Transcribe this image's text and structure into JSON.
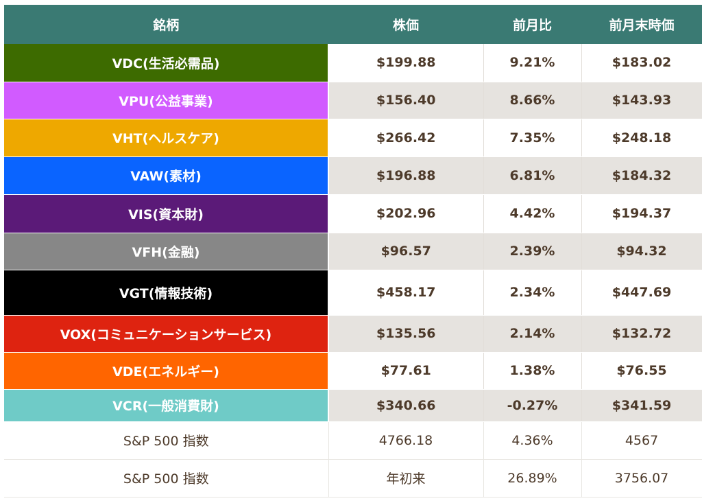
{
  "table": {
    "headers": [
      "銘柄",
      "株価",
      "前月比",
      "前月末時価"
    ],
    "rows": [
      {
        "name": "VDC(生活必需品)",
        "color": "#3d6b00",
        "price": "$199.88",
        "change": "9.21%",
        "prev": "$183.02"
      },
      {
        "name": "VPU(公益事業)",
        "color": "#d15bff",
        "price": "$156.40",
        "change": "8.66%",
        "prev": "$143.93"
      },
      {
        "name": "VHT(ヘルスケア)",
        "color": "#eea800",
        "price": "$266.42",
        "change": "7.35%",
        "prev": "$248.18"
      },
      {
        "name": "VAW(素材)",
        "color": "#0a64ff",
        "price": "$196.88",
        "change": "6.81%",
        "prev": "$184.32"
      },
      {
        "name": "VIS(資本財)",
        "color": "#5b1a78",
        "price": "$202.96",
        "change": "4.42%",
        "prev": "$194.37"
      },
      {
        "name": "VFH(金融)",
        "color": "#878787",
        "price": "$96.57",
        "change": "2.39%",
        "prev": "$94.32"
      },
      {
        "name": "VGT(情報技術)",
        "color": "#000000",
        "price": "$458.17",
        "change": "2.34%",
        "prev": "$447.69"
      },
      {
        "name": "VOX(コミュニケーションサービス)",
        "color": "#de2310",
        "price": "$135.56",
        "change": "2.14%",
        "prev": "$132.72"
      },
      {
        "name": "VDE(エネルギー)",
        "color": "#ff6500",
        "price": "$77.61",
        "change": "1.38%",
        "prev": "$76.55"
      },
      {
        "name": "VCR(一般消費財)",
        "color": "#6fcbc7",
        "price": "$340.66",
        "change": "-0.27%",
        "prev": "$341.59"
      }
    ],
    "summary": [
      {
        "name": "S&P 500 指数",
        "price": "4766.18",
        "change": "4.36%",
        "prev": "4567"
      },
      {
        "name": "S&P 500 指数",
        "price": "年初来",
        "change": "26.89%",
        "prev": "3756.07"
      }
    ]
  }
}
